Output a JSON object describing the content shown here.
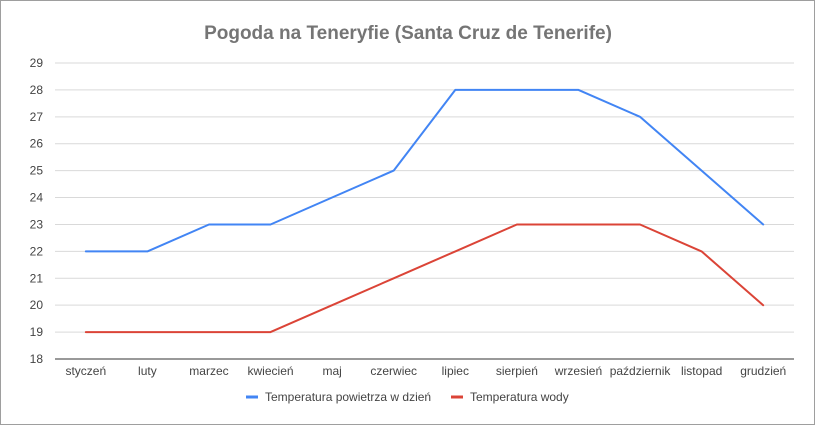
{
  "chart_data": {
    "type": "line",
    "title": "Pogoda na Teneryfie (Santa Cruz de Tenerife)",
    "xlabel": "",
    "ylabel": "",
    "categories": [
      "styczeń",
      "luty",
      "marzec",
      "kwiecień",
      "maj",
      "czerwiec",
      "lipiec",
      "sierpień",
      "wrzesień",
      "październik",
      "listopad",
      "grudzień"
    ],
    "ylim": [
      18,
      29
    ],
    "yticks": [
      18,
      19,
      20,
      21,
      22,
      23,
      24,
      25,
      26,
      27,
      28,
      29
    ],
    "grid": true,
    "legend_position": "bottom",
    "series": [
      {
        "name": "Temperatura powietrza w dzień",
        "color": "#4285f4",
        "values": [
          22,
          22,
          23,
          23,
          24,
          25,
          28,
          28,
          28,
          27,
          25,
          23
        ]
      },
      {
        "name": "Temperatura wody",
        "color": "#db4437",
        "values": [
          19,
          19,
          19,
          19,
          20,
          21,
          22,
          23,
          23,
          23,
          22,
          20
        ]
      }
    ]
  }
}
